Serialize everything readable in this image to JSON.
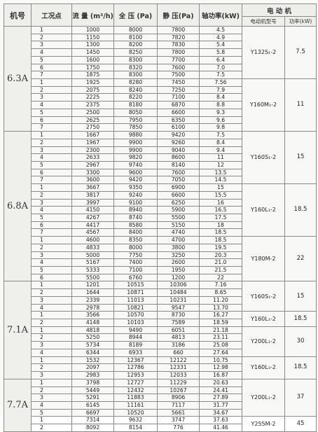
{
  "headers": {
    "model": "机号",
    "point": "工况点",
    "flow": "流 量 (m³/h)",
    "total_pressure": "全 压 (Pa)",
    "static_pressure": "静 压(Pa)",
    "shaft_power": "轴功率(kW)",
    "motor_group": "电 动 机",
    "motor_model": "电动机型号",
    "motor_power": "功率(kW)"
  },
  "groups": [
    {
      "model": "6.3A",
      "motors": [
        {
          "model": "Y132S₁-2",
          "power": "7.5",
          "rows": [
            [
              "1",
              "1000",
              "8000",
              "7800",
              "4.5"
            ],
            [
              "2",
              "1150",
              "8100",
              "7820",
              "4.9"
            ],
            [
              "3",
              "1300",
              "8200",
              "7830",
              "5.4"
            ],
            [
              "4",
              "1450",
              "8250",
              "7800",
              "5.8"
            ],
            [
              "5",
              "1600",
              "8300",
              "7700",
              "6.4"
            ],
            [
              "6",
              "1750",
              "8320",
              "7600",
              "7.0"
            ],
            [
              "7",
              "1875",
              "8300",
              "7500",
              "7.5"
            ]
          ]
        },
        {
          "model": "Y160M₁-2",
          "power": "11",
          "rows": [
            [
              "1",
              "1925",
              "8280",
              "7450",
              "7.56"
            ],
            [
              "2",
              "2075",
              "8240",
              "7250",
              "7.9"
            ],
            [
              "3",
              "2225",
              "8220",
              "7100",
              "8.4"
            ],
            [
              "4",
              "2375",
              "8180",
              "6870",
              "8.8"
            ],
            [
              "5",
              "2500",
              "8050",
              "6600",
              "9.3"
            ],
            [
              "6",
              "2625",
              "7950",
              "6350",
              "9.6"
            ],
            [
              "7",
              "2750",
              "7850",
              "6100",
              "9.8"
            ]
          ]
        }
      ]
    },
    {
      "model": "6.8A",
      "motors": [
        {
          "model": "Y160S₁-2",
          "power": "15",
          "rows": [
            [
              "1",
              "1667",
              "9880",
              "9420",
              "7.5"
            ],
            [
              "2",
              "1967",
              "9900",
              "9260",
              "8.4"
            ],
            [
              "3",
              "2300",
              "9900",
              "9040",
              "9.4"
            ],
            [
              "4",
              "2633",
              "9820",
              "8600",
              "11"
            ],
            [
              "5",
              "2967",
              "9740",
              "8140",
              "12"
            ],
            [
              "6",
              "3300",
              "9600",
              "7600",
              "13.5"
            ],
            [
              "7",
              "3600",
              "9420",
              "7050",
              "14.5"
            ]
          ]
        },
        {
          "model": "Y160L₁-2",
          "power": "18.5",
          "rows": [
            [
              "1",
              "3667",
              "9350",
              "6900",
              "15"
            ],
            [
              "2",
              "3817",
              "9240",
              "6600",
              "15.5"
            ],
            [
              "3",
              "3997",
              "9100",
              "6250",
              "16"
            ],
            [
              "4",
              "4150",
              "8940",
              "5900",
              "16.5"
            ],
            [
              "5",
              "4267",
              "8740",
              "5500",
              "17.5"
            ],
            [
              "6",
              "4417",
              "8580",
              "5150",
              "18"
            ],
            [
              "7",
              "4567",
              "8400",
              "4740",
              "18.5"
            ]
          ]
        },
        {
          "model": "Y180M-2",
          "power": "22",
          "rows": [
            [
              "1",
              "4600",
              "8350",
              "4700",
              "18.5"
            ],
            [
              "2",
              "4833",
              "8000",
              "3800",
              "19.5"
            ],
            [
              "3",
              "5000",
              "7750",
              "3250",
              "20.3"
            ],
            [
              "4",
              "5167",
              "7400",
              "2600",
              "21.0"
            ],
            [
              "5",
              "5333",
              "7100",
              "1950",
              "21.5"
            ],
            [
              "6",
              "5500",
              "6760",
              "1200",
              "22"
            ]
          ]
        }
      ]
    },
    {
      "model": "7.1A",
      "motors": [
        {
          "model": "Y160S₁-2",
          "power": "15",
          "rows": [
            [
              "1",
              "1201",
              "10515",
              "10306",
              "7.16"
            ],
            [
              "2",
              "1644",
              "10871",
              "10484",
              "8.65"
            ],
            [
              "3",
              "2339",
              "11013",
              "10231",
              "11.20"
            ],
            [
              "4",
              "2978",
              "10821",
              "9547",
              "13.70"
            ]
          ]
        },
        {
          "model": "Y160L₁-2",
          "power": "18.5",
          "rows": [
            [
              "1",
              "3566",
              "10570",
              "8730",
              "16.27"
            ],
            [
              "2",
              "4148",
              "10103",
              "7589",
              "18.59"
            ]
          ]
        },
        {
          "model": "Y200L₁-2",
          "power": "30",
          "rows": [
            [
              "1",
              "4818",
              "9490",
              "6051",
              "21.18"
            ],
            [
              "2",
              "5250",
              "8944",
              "4813",
              "23.11"
            ],
            [
              "3",
              "5734",
              "8189",
              "3186",
              "25.08"
            ],
            [
              "4",
              "6344",
              "6933",
              "660",
              "27.64"
            ]
          ]
        },
        {
          "model": "Y160L₁-2",
          "power": "18.5",
          "rows": [
            [
              "1",
              "1532",
              "12367",
              "12122",
              "10.75"
            ],
            [
              "2",
              "2097",
              "12786",
              "12331",
              "12.98"
            ],
            [
              "3",
              "2983",
              "12953",
              "12033",
              "16.87"
            ]
          ]
        }
      ]
    },
    {
      "model": "7.7A",
      "motors": [
        {
          "model": "Y200L₁-2",
          "power": "37",
          "rows": [
            [
              "1",
              "3798",
              "12727",
              "11229",
              "20.63"
            ],
            [
              "2",
              "5449",
              "12432",
              "10267",
              "24.41"
            ],
            [
              "3",
              "5291",
              "11883",
              "8906",
              "27.89"
            ],
            [
              "4",
              "6145",
              "11161",
              "7117",
              "31.77"
            ],
            [
              "5",
              "6697",
              "10520",
              "5661",
              "34.67"
            ]
          ]
        },
        {
          "model": "Y255M-2",
          "power": "45",
          "rows": [
            [
              "1",
              "7314",
              "9632",
              "3747",
              "37.63"
            ],
            [
              "2",
              "8092",
              "8154",
              "776",
              "41.46"
            ]
          ]
        }
      ]
    }
  ]
}
